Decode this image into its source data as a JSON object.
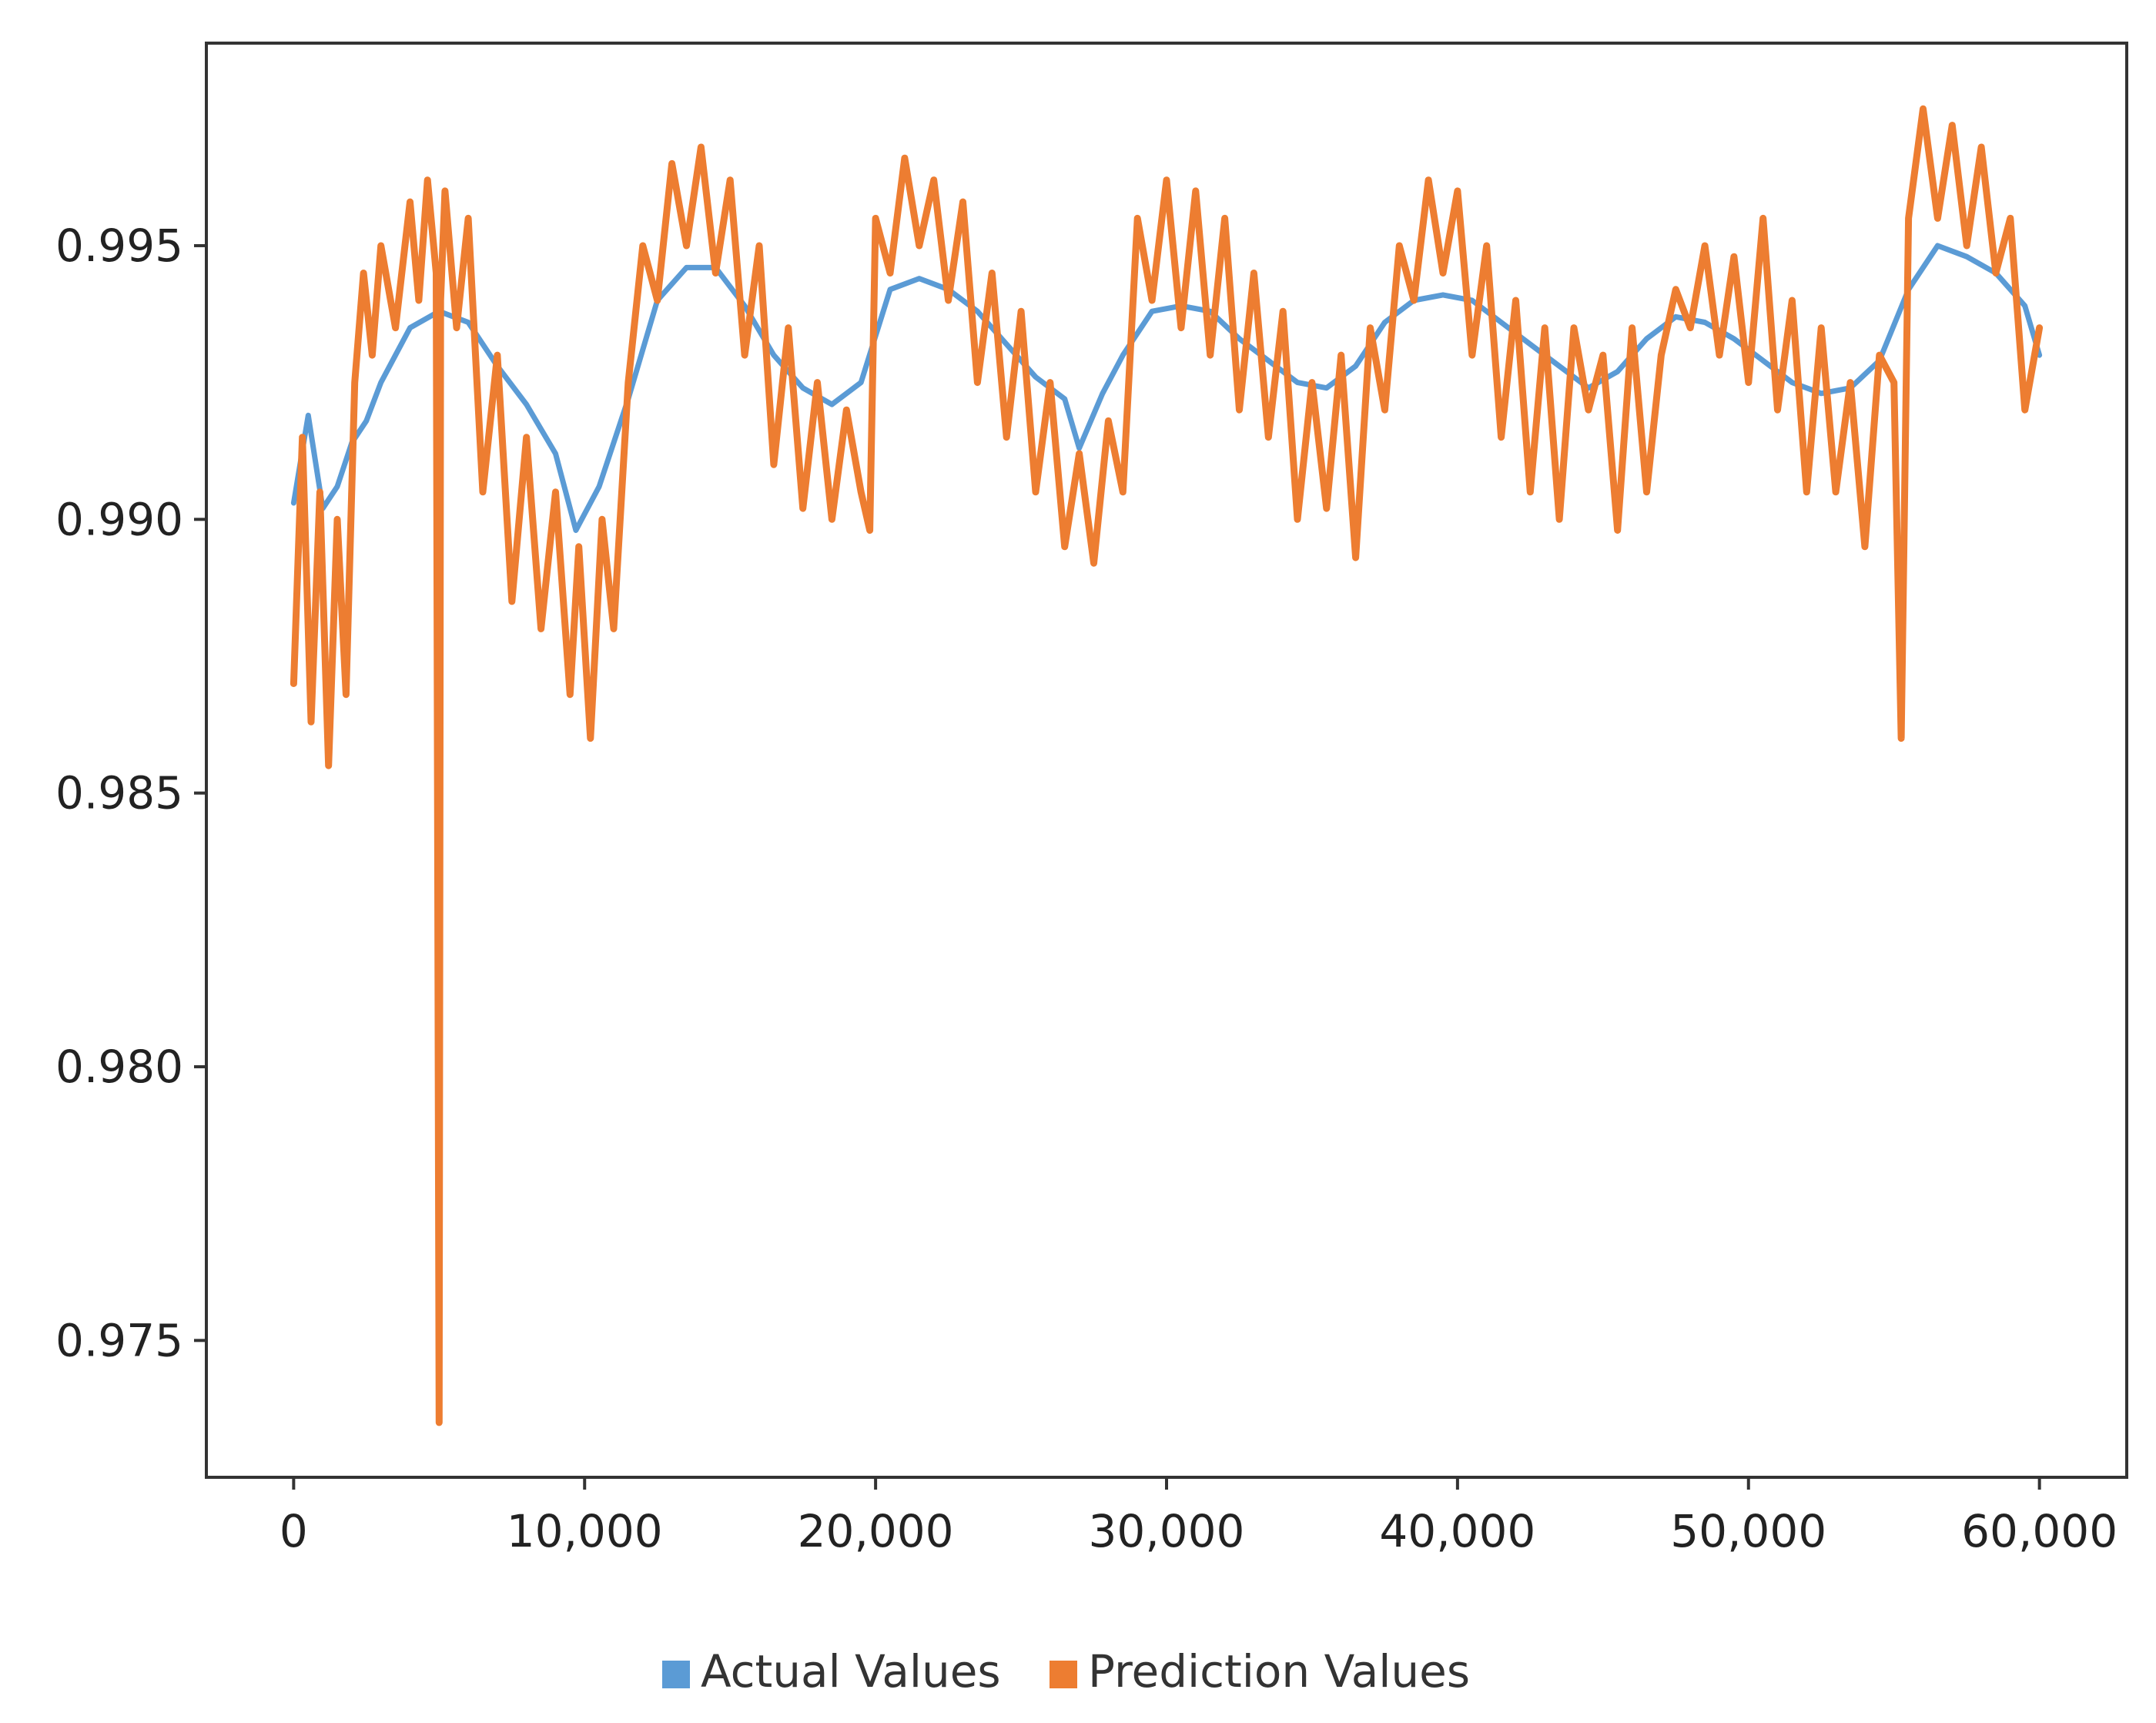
{
  "chart_data": {
    "type": "line",
    "title": "",
    "xlabel": "",
    "ylabel": "",
    "xlim": [
      -3000,
      63000
    ],
    "ylim": [
      0.9725,
      0.9987
    ],
    "x_ticks": [
      0,
      10000,
      20000,
      30000,
      40000,
      50000,
      60000
    ],
    "x_tick_labels": [
      "0",
      "10,000",
      "20,000",
      "30,000",
      "40,000",
      "50,000",
      "60,000"
    ],
    "y_ticks": [
      0.975,
      0.98,
      0.985,
      0.99,
      0.995
    ],
    "y_tick_labels": [
      "0.975",
      "0.980",
      "0.985",
      "0.990",
      "0.995"
    ],
    "grid": false,
    "legend_position": "bottom-center",
    "series": [
      {
        "name": "Actual Values",
        "color": "#5b9bd5",
        "x": [
          0,
          500,
          1000,
          1500,
          2000,
          2500,
          3000,
          4000,
          5000,
          6000,
          7000,
          8000,
          9000,
          9700,
          10500,
          11500,
          12500,
          13500,
          14500,
          15500,
          16500,
          17500,
          18500,
          19500,
          20500,
          21500,
          22500,
          23500,
          24500,
          25500,
          26500,
          27000,
          27800,
          28500,
          29500,
          30500,
          31500,
          32500,
          33500,
          34500,
          35500,
          36500,
          37500,
          38500,
          39500,
          40500,
          41500,
          42500,
          43500,
          44500,
          45500,
          46500,
          47500,
          48500,
          49500,
          50500,
          51500,
          52500,
          53500,
          54500,
          55500,
          56500,
          57500,
          58500,
          59500,
          60000
        ],
        "y": [
          0.9903,
          0.9919,
          0.9902,
          0.9906,
          0.9914,
          0.9918,
          0.9925,
          0.9935,
          0.9938,
          0.9936,
          0.9928,
          0.9921,
          0.9912,
          0.9898,
          0.9906,
          0.9922,
          0.994,
          0.9946,
          0.9946,
          0.9939,
          0.993,
          0.9924,
          0.9921,
          0.9925,
          0.9942,
          0.9944,
          0.9942,
          0.9938,
          0.9932,
          0.9926,
          0.9922,
          0.9913,
          0.9923,
          0.993,
          0.9938,
          0.9939,
          0.9938,
          0.9933,
          0.9929,
          0.9925,
          0.9924,
          0.9928,
          0.9936,
          0.994,
          0.9941,
          0.994,
          0.9936,
          0.9932,
          0.9928,
          0.9924,
          0.9927,
          0.9933,
          0.9937,
          0.9936,
          0.9933,
          0.9929,
          0.9925,
          0.9923,
          0.9924,
          0.9929,
          0.9942,
          0.995,
          0.9948,
          0.9945,
          0.9939,
          0.993
        ]
      },
      {
        "name": "Prediction Values",
        "color": "#ed7d31",
        "x": [
          0,
          300,
          600,
          900,
          1200,
          1500,
          1800,
          2100,
          2400,
          2700,
          3000,
          3500,
          4000,
          4300,
          4600,
          4900,
          5000,
          5050,
          5200,
          5600,
          6000,
          6500,
          7000,
          7500,
          8000,
          8500,
          9000,
          9500,
          9800,
          10200,
          10600,
          11000,
          11500,
          12000,
          12500,
          13000,
          13500,
          14000,
          14500,
          15000,
          15500,
          16000,
          16500,
          17000,
          17500,
          18000,
          18500,
          19000,
          19500,
          19800,
          20000,
          20500,
          21000,
          21500,
          22000,
          22500,
          23000,
          23500,
          24000,
          24500,
          25000,
          25500,
          26000,
          26500,
          27000,
          27500,
          28000,
          28500,
          29000,
          29500,
          30000,
          30500,
          31000,
          31500,
          32000,
          32500,
          33000,
          33500,
          34000,
          34500,
          35000,
          35500,
          36000,
          36500,
          37000,
          37500,
          38000,
          38500,
          39000,
          39500,
          40000,
          40500,
          41000,
          41500,
          42000,
          42500,
          43000,
          43500,
          44000,
          44500,
          45000,
          45500,
          46000,
          46500,
          47000,
          47500,
          48000,
          48500,
          49000,
          49500,
          50000,
          50500,
          51000,
          51500,
          52000,
          52500,
          53000,
          53500,
          54000,
          54500,
          55000,
          55250,
          55500,
          56000,
          56500,
          57000,
          57500,
          58000,
          58500,
          59000,
          59500,
          60000
        ],
        "y": [
          0.987,
          0.9915,
          0.9863,
          0.9905,
          0.9855,
          0.99,
          0.9868,
          0.9925,
          0.9945,
          0.993,
          0.995,
          0.9935,
          0.9958,
          0.994,
          0.9962,
          0.9945,
          0.9735,
          0.994,
          0.996,
          0.9935,
          0.9955,
          0.9905,
          0.993,
          0.9885,
          0.9915,
          0.988,
          0.9905,
          0.9868,
          0.9895,
          0.986,
          0.99,
          0.988,
          0.9925,
          0.995,
          0.994,
          0.9965,
          0.995,
          0.9968,
          0.9945,
          0.9962,
          0.993,
          0.995,
          0.991,
          0.9935,
          0.9902,
          0.9925,
          0.99,
          0.992,
          0.9905,
          0.9898,
          0.9955,
          0.9945,
          0.9966,
          0.995,
          0.9962,
          0.994,
          0.9958,
          0.9925,
          0.9945,
          0.9915,
          0.9938,
          0.9905,
          0.9925,
          0.9895,
          0.9912,
          0.9892,
          0.9918,
          0.9905,
          0.9955,
          0.994,
          0.9962,
          0.9935,
          0.996,
          0.993,
          0.9955,
          0.992,
          0.9945,
          0.9915,
          0.9938,
          0.99,
          0.9925,
          0.9902,
          0.993,
          0.9893,
          0.9935,
          0.992,
          0.995,
          0.994,
          0.9962,
          0.9945,
          0.996,
          0.993,
          0.995,
          0.9915,
          0.994,
          0.9905,
          0.9935,
          0.99,
          0.9935,
          0.992,
          0.993,
          0.9898,
          0.9935,
          0.9905,
          0.993,
          0.9942,
          0.9935,
          0.995,
          0.993,
          0.9948,
          0.9925,
          0.9955,
          0.992,
          0.994,
          0.9905,
          0.9935,
          0.9905,
          0.9925,
          0.9895,
          0.993,
          0.9925,
          0.986,
          0.9955,
          0.9975,
          0.9955,
          0.9972,
          0.995,
          0.9968,
          0.9945,
          0.9955,
          0.992,
          0.9935
        ]
      }
    ]
  }
}
